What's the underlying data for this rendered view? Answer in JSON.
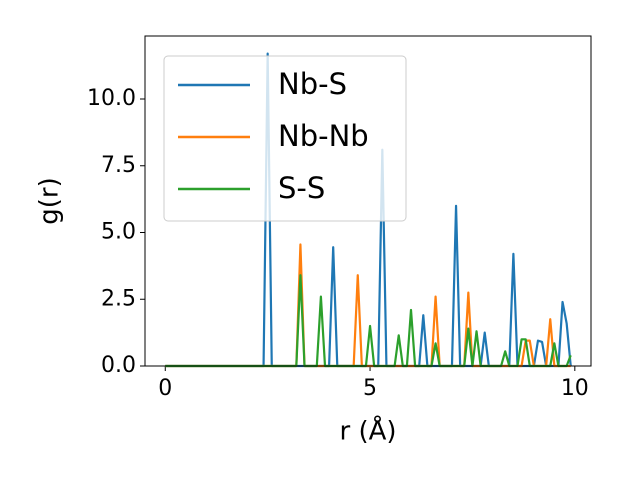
{
  "chart_data": {
    "type": "line",
    "xlabel": "r (Å)",
    "ylabel": "g(r)",
    "xlim": [
      -0.495,
      10.395
    ],
    "ylim": [
      0,
      12.36
    ],
    "xticks": [
      0,
      5,
      10
    ],
    "yticks": [
      {
        "value": 0,
        "label": "0.0"
      },
      {
        "value": 2.5,
        "label": "2.5"
      },
      {
        "value": 5,
        "label": "5.0"
      },
      {
        "value": 7.5,
        "label": "7.5"
      },
      {
        "value": 10,
        "label": "10.0"
      }
    ],
    "legend": "upper left",
    "x": [
      0,
      0.1,
      0.2,
      0.3,
      0.4,
      0.5,
      0.6,
      0.7,
      0.8,
      0.9,
      1,
      1.1,
      1.2,
      1.3,
      1.4,
      1.5,
      1.6,
      1.7,
      1.8,
      1.9,
      2,
      2.1,
      2.2,
      2.3,
      2.4,
      2.5,
      2.6,
      2.7,
      2.8,
      2.9,
      3,
      3.1,
      3.2,
      3.3,
      3.4,
      3.5,
      3.6,
      3.7,
      3.8,
      3.9,
      4,
      4.1,
      4.2,
      4.3,
      4.4,
      4.5,
      4.6,
      4.7,
      4.8,
      4.9,
      5,
      5.1,
      5.2,
      5.3,
      5.4,
      5.5,
      5.6,
      5.7,
      5.8,
      5.9,
      6,
      6.1,
      6.2,
      6.3,
      6.4,
      6.5,
      6.6,
      6.7,
      6.8,
      6.9,
      7,
      7.1,
      7.2,
      7.3,
      7.4,
      7.5,
      7.6,
      7.7,
      7.8,
      7.9,
      8,
      8.1,
      8.2,
      8.3,
      8.4,
      8.5,
      8.6,
      8.7,
      8.8,
      8.9,
      9,
      9.1,
      9.2,
      9.3,
      9.4,
      9.5,
      9.6,
      9.7,
      9.8,
      9.9
    ],
    "series": [
      {
        "name": "Nb-S",
        "color": "#1f77b4",
        "values": [
          0,
          0,
          0,
          0,
          0,
          0,
          0,
          0,
          0,
          0,
          0,
          0,
          0,
          0,
          0,
          0,
          0,
          0,
          0,
          0,
          0,
          0,
          0,
          0,
          0,
          11.7,
          0,
          0,
          0,
          0,
          0,
          0,
          0,
          0,
          0,
          0,
          0,
          0,
          0,
          0,
          0,
          4.45,
          0,
          0,
          0,
          0,
          0,
          0,
          0,
          0,
          0,
          0,
          0,
          8.1,
          0,
          0,
          0,
          0,
          0,
          0,
          0,
          0,
          0,
          1.9,
          0,
          0,
          0,
          0,
          0,
          0,
          0,
          6.0,
          0,
          0,
          0,
          0,
          0,
          0,
          1.25,
          0,
          0,
          0,
          0,
          0,
          0,
          4.2,
          0,
          0,
          0,
          0,
          0,
          0.95,
          0.9,
          0,
          0,
          0,
          0,
          2.4,
          1.6,
          0
        ]
      },
      {
        "name": "Nb-Nb",
        "color": "#ff7f0e",
        "values": [
          0,
          0,
          0,
          0,
          0,
          0,
          0,
          0,
          0,
          0,
          0,
          0,
          0,
          0,
          0,
          0,
          0,
          0,
          0,
          0,
          0,
          0,
          0,
          0,
          0,
          0,
          0,
          0,
          0,
          0,
          0,
          0,
          0,
          4.55,
          0,
          0,
          0,
          0,
          0,
          0,
          0,
          0,
          0,
          0,
          0,
          0,
          0,
          3.4,
          0,
          0,
          0,
          0,
          0,
          0,
          0,
          0,
          0,
          0,
          0,
          0,
          0,
          0,
          0,
          0,
          0,
          0,
          2.6,
          0,
          0,
          0,
          0,
          0,
          0,
          0,
          2.75,
          0,
          0,
          0,
          0,
          0,
          0,
          0,
          0,
          0,
          0,
          0,
          0,
          0,
          0.95,
          0.95,
          0,
          0,
          0,
          0,
          1.75,
          0,
          0,
          0,
          0,
          0
        ]
      },
      {
        "name": "S-S",
        "color": "#2ca02c",
        "values": [
          0,
          0,
          0,
          0,
          0,
          0,
          0,
          0,
          0,
          0,
          0,
          0,
          0,
          0,
          0,
          0,
          0,
          0,
          0,
          0,
          0,
          0,
          0,
          0,
          0,
          0,
          0,
          0,
          0,
          0,
          0,
          0,
          0,
          3.4,
          0,
          0,
          0,
          0,
          2.6,
          0,
          0,
          0,
          0,
          0,
          0,
          0,
          0,
          0,
          0,
          0,
          1.5,
          0,
          0,
          0,
          0,
          0,
          0,
          1.15,
          0,
          0,
          2.1,
          0,
          0,
          0,
          0,
          0,
          0.85,
          0,
          0,
          0,
          0,
          0,
          0,
          0,
          1.4,
          0,
          1.3,
          0,
          0,
          0,
          0,
          0,
          0,
          0.55,
          0,
          0,
          0,
          1.0,
          1.0,
          0,
          0,
          0,
          0,
          0,
          0,
          0.85,
          0,
          0,
          0,
          0.4
        ]
      }
    ]
  }
}
